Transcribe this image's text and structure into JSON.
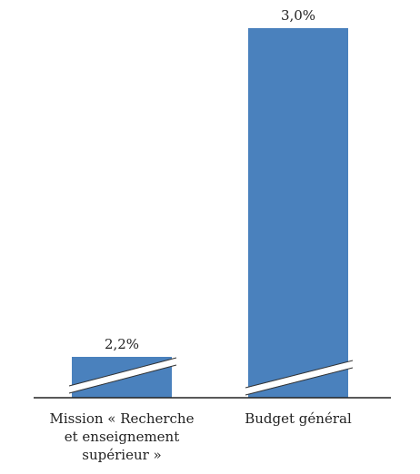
{
  "chart_data": {
    "type": "bar",
    "categories": [
      [
        "Mission « Recherche",
        "et enseignement",
        "supérieur »"
      ],
      [
        "Budget général"
      ]
    ],
    "values": [
      2.2,
      3.0
    ],
    "value_labels": [
      "2,2%",
      "3,0%"
    ],
    "axis_break": true,
    "colors": {
      "bar": "#4a81bd"
    }
  }
}
